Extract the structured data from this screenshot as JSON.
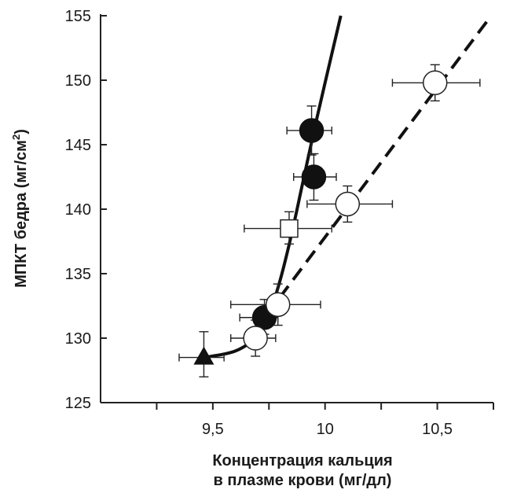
{
  "chart_data": {
    "type": "scatter",
    "xlabel_line1": "Концентрация кальция",
    "xlabel_line2": "в плазме крови (мг/дл)",
    "ylabel_main": "МПКТ бедра (мг/см",
    "ylabel_sup": "2",
    "ylabel_close": ")",
    "xlim": [
      9.0,
      10.75
    ],
    "ylim": [
      125,
      155
    ],
    "x_ticks": [
      9.25,
      9.5,
      9.75,
      10.0,
      10.25,
      10.5,
      10.75
    ],
    "x_tick_labels": [
      {
        "value": 9.5,
        "label": "9,5"
      },
      {
        "value": 10.0,
        "label": "10"
      },
      {
        "value": 10.5,
        "label": "10,5"
      }
    ],
    "y_ticks": [
      {
        "value": 125,
        "label": "125"
      },
      {
        "value": 130,
        "label": "130"
      },
      {
        "value": 135,
        "label": "135"
      },
      {
        "value": 140,
        "label": "140"
      },
      {
        "value": 145,
        "label": "145"
      },
      {
        "value": 150,
        "label": "150"
      },
      {
        "value": 155,
        "label": "155"
      }
    ],
    "series": [
      {
        "marker": "filled-triangle",
        "points": [
          {
            "x": 9.46,
            "y": 128.5,
            "xerr": [
              9.35,
              9.55
            ],
            "yerr": [
              127.0,
              130.5
            ]
          }
        ]
      },
      {
        "marker": "filled-circle",
        "points": [
          {
            "x": 9.73,
            "y": 131.6,
            "xerr": [
              9.62,
              9.79
            ],
            "yerr": [
              130.3,
              133.0
            ]
          },
          {
            "x": 9.95,
            "y": 142.5,
            "xerr": [
              9.86,
              10.05
            ],
            "yerr": [
              140.7,
              144.3
            ]
          },
          {
            "x": 9.94,
            "y": 146.1,
            "xerr": [
              9.83,
              10.03
            ],
            "yerr": [
              144.2,
              148.0
            ]
          }
        ]
      },
      {
        "marker": "open-circle",
        "points": [
          {
            "x": 9.69,
            "y": 130.0,
            "xerr": [
              9.58,
              9.78
            ],
            "yerr": [
              128.6,
              131.4
            ]
          },
          {
            "x": 9.79,
            "y": 132.6,
            "xerr": [
              9.58,
              9.98
            ],
            "yerr": [
              131.0,
              134.2
            ]
          },
          {
            "x": 10.1,
            "y": 140.4,
            "xerr": [
              9.92,
              10.3
            ],
            "yerr": [
              139.0,
              141.8
            ]
          },
          {
            "x": 10.49,
            "y": 149.8,
            "xerr": [
              10.3,
              10.69
            ],
            "yerr": [
              148.4,
              151.2
            ]
          }
        ]
      },
      {
        "marker": "open-square",
        "points": [
          {
            "x": 9.84,
            "y": 138.5,
            "xerr": [
              9.64,
              10.03
            ],
            "yerr": [
              137.3,
              139.8
            ]
          }
        ]
      }
    ],
    "curves": [
      {
        "style": "solid",
        "points": [
          [
            9.46,
            128.5
          ],
          [
            9.6,
            129.0
          ],
          [
            9.7,
            130.2
          ],
          [
            9.75,
            131.8
          ],
          [
            9.8,
            134.5
          ],
          [
            9.85,
            138.0
          ],
          [
            9.9,
            142.0
          ],
          [
            9.95,
            146.0
          ],
          [
            10.0,
            149.8
          ],
          [
            10.07,
            155.0
          ]
        ]
      },
      {
        "style": "dashed",
        "points": [
          [
            9.74,
            131.8
          ],
          [
            10.74,
            155.0
          ]
        ]
      }
    ],
    "grid": false,
    "legend": false
  }
}
